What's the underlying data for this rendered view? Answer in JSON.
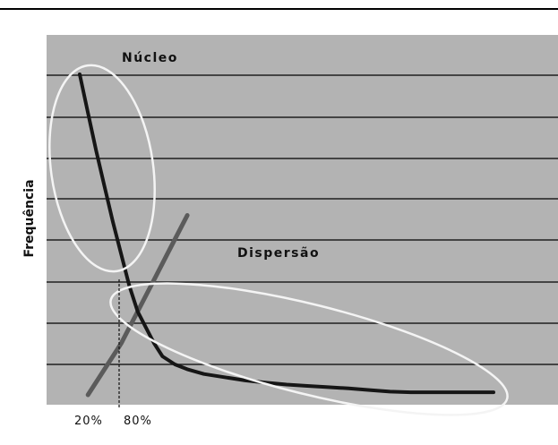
{
  "chart_data": {
    "type": "line",
    "title": "",
    "ylabel": "Frequência",
    "xlabel": "",
    "x_tick_labels": [
      "20%",
      "80%"
    ],
    "annotations": {
      "core_label": "Núcleo",
      "dispersion_label": "Dispersão"
    },
    "grid": true,
    "colors": {
      "plot_background": "#b3b3b3",
      "gridline": "#1f1f1f",
      "main_curve": "#161616",
      "cross_line": "#5b5b5b",
      "ellipse": "#f4f4f4",
      "top_rule": "#000000"
    },
    "series": [
      {
        "values_x": [
          0,
          2,
          4,
          6,
          8,
          10,
          12,
          14,
          16,
          18,
          20,
          23,
          26,
          30,
          35,
          40,
          45,
          50,
          55,
          60,
          65,
          70,
          75,
          80,
          85,
          90,
          95,
          100
        ],
        "values_y": [
          100,
          88,
          76,
          65,
          54,
          44,
          34,
          26,
          21,
          16,
          12,
          9.5,
          8,
          6.5,
          5.5,
          4.5,
          3.8,
          3.2,
          2.8,
          2.4,
          2.0,
          1.5,
          1.0,
          0.8,
          0.8,
          0.8,
          0.8,
          0.8
        ]
      },
      {
        "values_x": [
          2,
          5,
          8,
          10,
          14,
          18,
          22,
          26
        ],
        "values_y": [
          0,
          6,
          12,
          16,
          26,
          36,
          46,
          56
        ]
      }
    ]
  }
}
